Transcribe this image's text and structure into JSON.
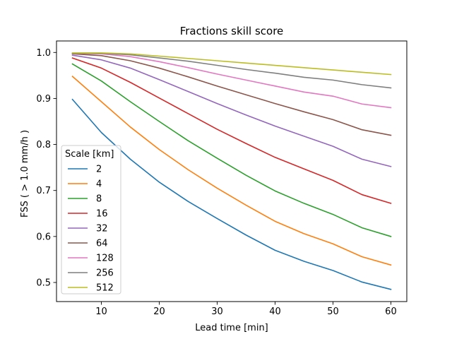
{
  "chart_data": {
    "type": "line",
    "title": "Fractions skill score",
    "xlabel": "Lead time [min]",
    "ylabel": "FSS ( > 1.0 mm/h )",
    "xlim": [
      2.25,
      62.75
    ],
    "ylim": [
      0.4585,
      1.025
    ],
    "xticks": [
      10,
      20,
      30,
      40,
      50,
      60
    ],
    "yticks": [
      0.5,
      0.6,
      0.7,
      0.8,
      0.9,
      1.0
    ],
    "xtick_labels": [
      "10",
      "20",
      "30",
      "40",
      "50",
      "60"
    ],
    "ytick_labels": [
      "0.5",
      "0.6",
      "0.7",
      "0.8",
      "0.9",
      "1.0"
    ],
    "grid": false,
    "legend": {
      "title": "Scale [km]",
      "placement": "lower-left"
    },
    "x": [
      5,
      10,
      15,
      20,
      25,
      30,
      35,
      40,
      45,
      50,
      55,
      60
    ],
    "series": [
      {
        "name": "2",
        "color": "#1f77b4",
        "values": [
          0.898,
          0.826,
          0.768,
          0.718,
          0.676,
          0.639,
          0.603,
          0.57,
          0.546,
          0.526,
          0.501,
          0.485
        ]
      },
      {
        "name": "4",
        "color": "#ff7f0e",
        "values": [
          0.948,
          0.893,
          0.838,
          0.789,
          0.745,
          0.705,
          0.668,
          0.633,
          0.606,
          0.584,
          0.556,
          0.538
        ]
      },
      {
        "name": "8",
        "color": "#2ca02c",
        "values": [
          0.975,
          0.938,
          0.893,
          0.85,
          0.808,
          0.77,
          0.733,
          0.699,
          0.672,
          0.648,
          0.619,
          0.6
        ]
      },
      {
        "name": "16",
        "color": "#d62728",
        "values": [
          0.988,
          0.966,
          0.935,
          0.901,
          0.867,
          0.833,
          0.802,
          0.772,
          0.747,
          0.722,
          0.691,
          0.672
        ]
      },
      {
        "name": "32",
        "color": "#9467bd",
        "values": [
          0.994,
          0.984,
          0.966,
          0.941,
          0.915,
          0.889,
          0.864,
          0.84,
          0.818,
          0.796,
          0.768,
          0.752
        ]
      },
      {
        "name": "64",
        "color": "#8c564b",
        "values": [
          0.997,
          0.993,
          0.982,
          0.966,
          0.947,
          0.927,
          0.908,
          0.889,
          0.871,
          0.854,
          0.832,
          0.82
        ]
      },
      {
        "name": "128",
        "color": "#e377c2",
        "values": [
          0.998,
          0.997,
          0.991,
          0.98,
          0.967,
          0.953,
          0.94,
          0.927,
          0.914,
          0.905,
          0.888,
          0.88
        ]
      },
      {
        "name": "256",
        "color": "#7f7f7f",
        "values": [
          0.998,
          0.998,
          0.995,
          0.988,
          0.981,
          0.972,
          0.963,
          0.955,
          0.946,
          0.94,
          0.93,
          0.923
        ]
      },
      {
        "name": "512",
        "color": "#bcbd22",
        "values": [
          0.999,
          0.999,
          0.997,
          0.992,
          0.987,
          0.982,
          0.977,
          0.972,
          0.967,
          0.962,
          0.957,
          0.952
        ]
      }
    ]
  }
}
